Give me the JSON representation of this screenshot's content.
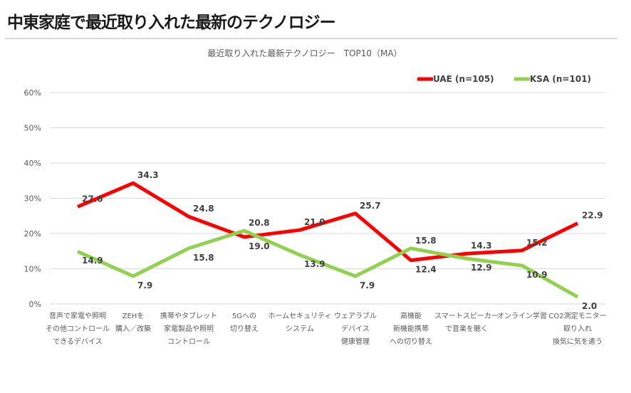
{
  "page": {
    "title": "中東家庭で最近取り入れた最新のテクノロジー"
  },
  "chart_data": {
    "type": "line",
    "title": "最近取り入れた最新テクノロジー　TOP10（MA）",
    "categories": [
      [
        "音声で家電や照明",
        "その他コントロール",
        "できるデバイス"
      ],
      [
        "ZEHを",
        "購入／改築"
      ],
      [
        "携帯やタブレット",
        "家電製品や照明",
        "コントロール"
      ],
      [
        "5Gへの",
        "切り替え"
      ],
      [
        "ホームセキュリティ",
        "システム"
      ],
      [
        "ウェアラブル",
        "デバイス",
        "健康管理"
      ],
      [
        "高機能",
        "新機能携帯",
        "への切り替え"
      ],
      [
        "スマートスピーカー",
        "で音楽を聴く"
      ],
      [
        "オンライン学習"
      ],
      [
        "CO2測定モニター",
        "取り入れ",
        "換気に気を遣う"
      ]
    ],
    "series": [
      {
        "name": "UAE (n=105)",
        "color": "#ff0000",
        "values": [
          27.6,
          34.3,
          24.8,
          19.0,
          21.0,
          25.7,
          12.4,
          14.3,
          15.2,
          22.9
        ]
      },
      {
        "name": "KSA (n=101)",
        "color": "#92d050",
        "values": [
          14.9,
          7.9,
          15.8,
          20.8,
          13.9,
          7.9,
          15.8,
          12.9,
          10.9,
          2.0
        ]
      }
    ],
    "yticks": [
      "0%",
      "10%",
      "20%",
      "30%",
      "40%",
      "50%",
      "60%"
    ],
    "ylim": [
      0,
      60
    ],
    "grid": true,
    "legend": "top-right"
  }
}
